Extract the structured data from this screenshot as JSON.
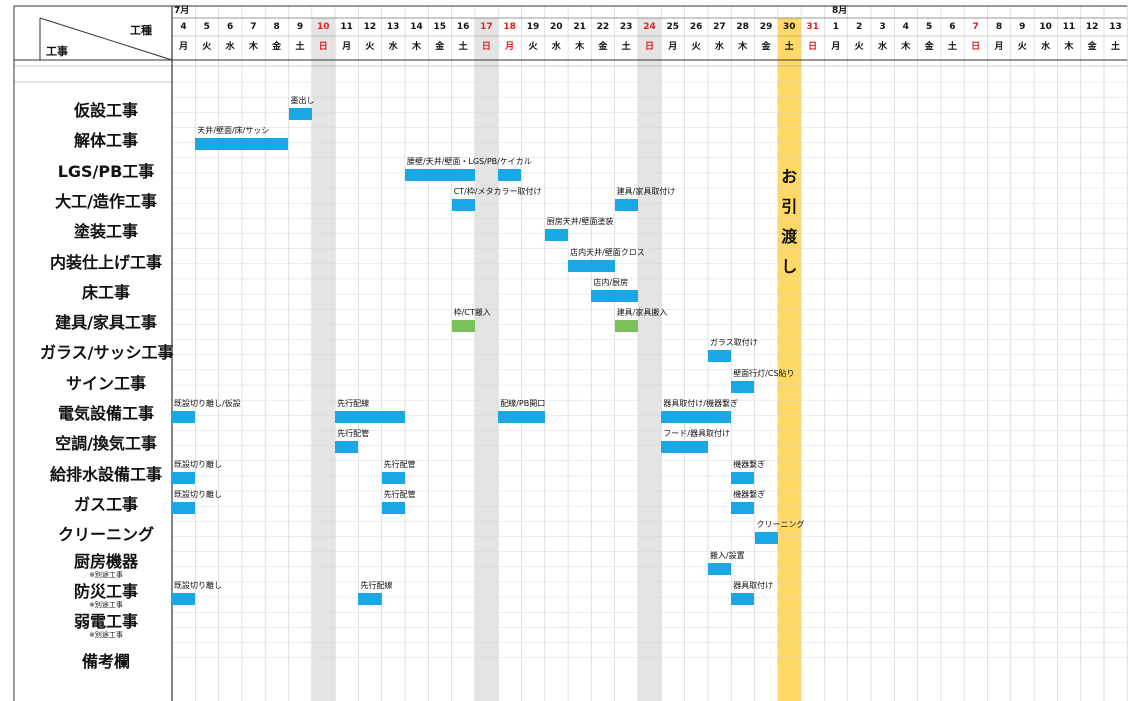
{
  "header": {
    "corner_top": "工種",
    "corner_bottom": "工事",
    "month1": "7月",
    "month2": "8月",
    "days": [
      4,
      5,
      6,
      7,
      8,
      9,
      10,
      11,
      12,
      13,
      14,
      15,
      16,
      17,
      18,
      19,
      20,
      21,
      22,
      23,
      24,
      25,
      26,
      27,
      28,
      29,
      30,
      31,
      1,
      2,
      3,
      4,
      5,
      6,
      7,
      8,
      9,
      10,
      11,
      12,
      13
    ],
    "weekdays": [
      "月",
      "火",
      "水",
      "木",
      "金",
      "土",
      "日",
      "月",
      "火",
      "水",
      "木",
      "金",
      "土",
      "日",
      "月",
      "火",
      "水",
      "木",
      "金",
      "土",
      "日",
      "月",
      "火",
      "水",
      "木",
      "金",
      "土",
      "日",
      "月",
      "火",
      "水",
      "木",
      "金",
      "土",
      "日",
      "月",
      "火",
      "水",
      "木",
      "金",
      "土"
    ],
    "red_days": [
      6,
      13,
      14,
      20,
      27,
      34
    ],
    "gray_days": [
      6,
      13,
      20
    ],
    "highlight_day": 26
  },
  "handover": [
    "お",
    "引",
    "渡",
    "し"
  ],
  "colors": {
    "bar": "#1aa7e6",
    "bar_green": "#7cc05a",
    "highlight": "#ffd866",
    "gray": "#e4e4e4",
    "red_text": "#e02020"
  },
  "tasks": [
    {
      "name": "仮設工事",
      "note": "",
      "bars": [
        {
          "start": 5,
          "end": 6,
          "label": "墨出し",
          "color": "blue"
        }
      ]
    },
    {
      "name": "解体工事",
      "note": "",
      "bars": [
        {
          "start": 1,
          "end": 5,
          "label": "天井/壁面/床/サッシ",
          "color": "blue"
        }
      ]
    },
    {
      "name": "LGS/PB工事",
      "note": "",
      "bars": [
        {
          "start": 10,
          "end": 13,
          "label": "腰壁/天井/壁面・LGS/PB/ケイカル",
          "color": "blue"
        },
        {
          "start": 14,
          "end": 15,
          "label": "",
          "color": "blue"
        }
      ]
    },
    {
      "name": "大工/造作工事",
      "note": "",
      "bars": [
        {
          "start": 12,
          "end": 13,
          "label": "CT/枠/メタカラー取付け",
          "color": "blue"
        },
        {
          "start": 19,
          "end": 20,
          "label": "建具/家具取付け",
          "color": "blue"
        }
      ]
    },
    {
      "name": "塗装工事",
      "note": "",
      "bars": [
        {
          "start": 16,
          "end": 17,
          "label": "厨房天井/壁面塗装",
          "color": "blue"
        }
      ]
    },
    {
      "name": "内装仕上げ工事",
      "note": "",
      "bars": [
        {
          "start": 17,
          "end": 19,
          "label": "店内天井/壁面クロス",
          "color": "blue"
        }
      ]
    },
    {
      "name": "床工事",
      "note": "",
      "bars": [
        {
          "start": 18,
          "end": 20,
          "label": "店内/厨房",
          "color": "blue"
        }
      ]
    },
    {
      "name": "建具/家具工事",
      "note": "",
      "bars": [
        {
          "start": 12,
          "end": 13,
          "label": "枠/CT搬入",
          "color": "green"
        },
        {
          "start": 19,
          "end": 20,
          "label": "建具/家具搬入",
          "color": "green"
        }
      ]
    },
    {
      "name": "ガラス/サッシ工事",
      "note": "",
      "bars": [
        {
          "start": 23,
          "end": 24,
          "label": "ガラス取付け",
          "color": "blue"
        }
      ]
    },
    {
      "name": "サイン工事",
      "note": "",
      "bars": [
        {
          "start": 24,
          "end": 25,
          "label": "壁面行灯/CS貼り",
          "color": "blue"
        }
      ]
    },
    {
      "name": "電気設備工事",
      "note": "",
      "bars": [
        {
          "start": 0,
          "end": 1,
          "label": "既設切り離し/仮設",
          "color": "blue"
        },
        {
          "start": 7,
          "end": 10,
          "label": "先行配線",
          "color": "blue"
        },
        {
          "start": 14,
          "end": 16,
          "label": "配線/PB開口",
          "color": "blue"
        },
        {
          "start": 21,
          "end": 24,
          "label": "器具取付け/機器繋ぎ",
          "color": "blue"
        }
      ]
    },
    {
      "name": "空調/換気工事",
      "note": "",
      "bars": [
        {
          "start": 7,
          "end": 8,
          "label": "先行配管",
          "color": "blue"
        },
        {
          "start": 21,
          "end": 23,
          "label": "フード/器具取付け",
          "color": "blue"
        }
      ]
    },
    {
      "name": "給排水設備工事",
      "note": "",
      "bars": [
        {
          "start": 0,
          "end": 1,
          "label": "既設切り離し",
          "color": "blue"
        },
        {
          "start": 9,
          "end": 10,
          "label": "先行配管",
          "color": "blue"
        },
        {
          "start": 24,
          "end": 25,
          "label": "機器繋ぎ",
          "color": "blue"
        }
      ]
    },
    {
      "name": "ガス工事",
      "note": "",
      "bars": [
        {
          "start": 0,
          "end": 1,
          "label": "既設切り離し",
          "color": "blue"
        },
        {
          "start": 9,
          "end": 10,
          "label": "先行配管",
          "color": "blue"
        },
        {
          "start": 24,
          "end": 25,
          "label": "機器繋ぎ",
          "color": "blue"
        }
      ]
    },
    {
      "name": "クリーニング",
      "note": "",
      "bars": [
        {
          "start": 25,
          "end": 26,
          "label": "クリーニング",
          "color": "blue"
        }
      ]
    },
    {
      "name": "厨房機器",
      "note": "※別途工事",
      "bars": [
        {
          "start": 23,
          "end": 24,
          "label": "搬入/設置",
          "color": "blue"
        }
      ]
    },
    {
      "name": "防災工事",
      "note": "※別途工事",
      "bars": [
        {
          "start": 0,
          "end": 1,
          "label": "既設切り離し",
          "color": "blue"
        },
        {
          "start": 8,
          "end": 9,
          "label": "先行配線",
          "color": "blue"
        },
        {
          "start": 24,
          "end": 25,
          "label": "器具取付け",
          "color": "blue"
        }
      ]
    },
    {
      "name": "弱電工事",
      "note": "※別途工事",
      "bars": []
    },
    {
      "name": "備考欄",
      "note": "",
      "bars": []
    }
  ]
}
